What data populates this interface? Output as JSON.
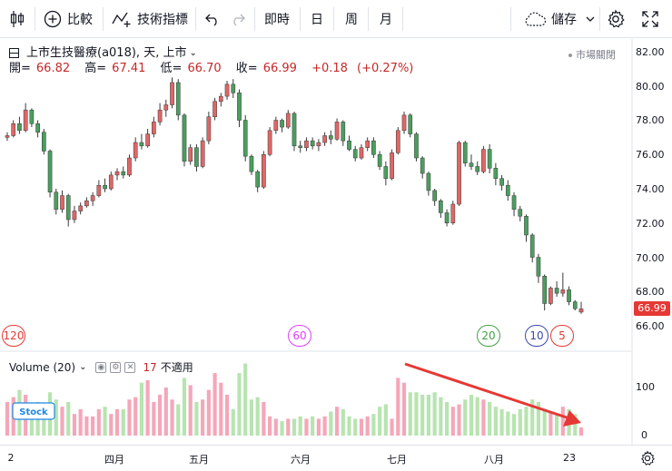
{
  "toolbar": {
    "compare_label": "比較",
    "indicators_label": "技術指標",
    "intervals": [
      "即時",
      "日",
      "周",
      "月"
    ],
    "save_label": "儲存"
  },
  "legend": {
    "title": "上市生技醫療(a018), 天, 上市",
    "open_label": "開=",
    "open": "66.82",
    "high_label": "高=",
    "high": "67.41",
    "low_label": "低=",
    "low": "66.70",
    "close_label": "收=",
    "close": "66.99",
    "change": "+0.18",
    "change_pct": "(+0.27%)",
    "market_status": "市場關閉"
  },
  "price_axis": {
    "ticks": [
      "82.00",
      "80.00",
      "78.00",
      "76.00",
      "74.00",
      "72.00",
      "70.00",
      "68.00",
      "66.00"
    ],
    "last_price": "66.99"
  },
  "ma_markers": [
    {
      "label": "120",
      "color": "#e53935"
    },
    {
      "label": "60",
      "color": "#e040fb"
    },
    {
      "label": "20",
      "color": "#43a047"
    },
    {
      "label": "10",
      "color": "#3949ab"
    },
    {
      "label": "5",
      "color": "#e53935"
    }
  ],
  "volume": {
    "label": "Volume (20)",
    "value": "17",
    "value_text": "不適用",
    "ticks": [
      "100",
      "0"
    ]
  },
  "time_axis": {
    "labels": [
      "2",
      "四月",
      "五月",
      "六月",
      "七月",
      "八月",
      "23"
    ]
  },
  "colors": {
    "up": "#e06666",
    "down": "#4b9e5f",
    "vol_up": "#f4a7b9",
    "vol_down": "#b7e4b0",
    "annotation": "#e53935"
  },
  "watermark": "Stock",
  "chart_data": {
    "type": "candlestick",
    "ylim": [
      65.5,
      82.5
    ],
    "candles": [
      [
        77.0,
        77.3,
        76.8,
        77.1
      ],
      [
        77.1,
        78.0,
        77.0,
        77.8
      ],
      [
        77.8,
        78.2,
        77.2,
        77.4
      ],
      [
        77.4,
        79.0,
        77.3,
        78.6
      ],
      [
        78.6,
        78.7,
        77.6,
        77.8
      ],
      [
        77.8,
        78.0,
        77.0,
        77.3
      ],
      [
        77.3,
        77.5,
        76.0,
        76.2
      ],
      [
        76.2,
        76.3,
        73.5,
        73.8
      ],
      [
        73.8,
        74.0,
        72.5,
        72.8
      ],
      [
        72.8,
        73.9,
        72.6,
        73.6
      ],
      [
        73.6,
        73.7,
        71.8,
        72.2
      ],
      [
        72.2,
        73.0,
        72.0,
        72.7
      ],
      [
        72.7,
        73.2,
        72.5,
        73.0
      ],
      [
        73.0,
        73.5,
        72.9,
        73.3
      ],
      [
        73.3,
        73.8,
        73.0,
        73.6
      ],
      [
        73.6,
        74.5,
        73.5,
        74.2
      ],
      [
        74.2,
        74.6,
        73.8,
        74.0
      ],
      [
        74.0,
        75.0,
        73.9,
        74.8
      ],
      [
        74.8,
        75.2,
        74.5,
        75.0
      ],
      [
        75.0,
        75.3,
        74.6,
        74.8
      ],
      [
        74.8,
        76.0,
        74.7,
        75.8
      ],
      [
        75.8,
        77.0,
        75.6,
        76.7
      ],
      [
        76.7,
        77.2,
        76.3,
        76.5
      ],
      [
        76.5,
        77.5,
        76.4,
        77.2
      ],
      [
        77.2,
        78.2,
        77.0,
        77.9
      ],
      [
        77.9,
        79.0,
        77.7,
        78.6
      ],
      [
        78.6,
        79.2,
        78.2,
        78.9
      ],
      [
        78.9,
        80.5,
        78.7,
        80.2
      ],
      [
        80.2,
        80.4,
        78.0,
        78.3
      ],
      [
        78.3,
        78.4,
        75.3,
        75.6
      ],
      [
        75.6,
        76.6,
        75.4,
        76.4
      ],
      [
        76.4,
        76.6,
        75.0,
        75.3
      ],
      [
        75.3,
        77.0,
        75.2,
        76.8
      ],
      [
        76.8,
        78.5,
        76.6,
        78.2
      ],
      [
        78.2,
        79.3,
        78.0,
        79.1
      ],
      [
        79.1,
        79.6,
        78.8,
        79.4
      ],
      [
        79.4,
        80.3,
        79.2,
        80.1
      ],
      [
        80.1,
        80.4,
        79.3,
        79.6
      ],
      [
        79.6,
        79.8,
        77.6,
        78.0
      ],
      [
        78.0,
        78.3,
        75.6,
        75.9
      ],
      [
        75.9,
        76.0,
        74.8,
        75.0
      ],
      [
        75.0,
        75.1,
        73.8,
        74.1
      ],
      [
        74.1,
        76.2,
        74.0,
        76.0
      ],
      [
        76.0,
        77.6,
        75.9,
        77.4
      ],
      [
        77.4,
        78.2,
        77.2,
        78.0
      ],
      [
        78.0,
        78.1,
        77.3,
        77.6
      ],
      [
        77.6,
        78.6,
        77.5,
        78.4
      ],
      [
        78.4,
        78.5,
        76.2,
        76.5
      ],
      [
        76.5,
        76.8,
        76.1,
        76.4
      ],
      [
        76.4,
        77.0,
        76.2,
        76.8
      ],
      [
        76.8,
        77.0,
        76.3,
        76.5
      ],
      [
        76.5,
        76.9,
        76.2,
        76.7
      ],
      [
        76.7,
        77.3,
        76.5,
        77.1
      ],
      [
        77.1,
        77.4,
        76.6,
        76.9
      ],
      [
        76.9,
        78.1,
        76.8,
        77.9
      ],
      [
        77.9,
        78.0,
        76.5,
        76.8
      ],
      [
        76.8,
        77.1,
        76.2,
        76.3
      ],
      [
        76.3,
        76.5,
        75.6,
        75.8
      ],
      [
        75.8,
        76.6,
        75.7,
        76.4
      ],
      [
        76.4,
        77.0,
        76.2,
        76.8
      ],
      [
        76.8,
        77.0,
        75.8,
        76.0
      ],
      [
        76.0,
        76.2,
        75.1,
        75.3
      ],
      [
        75.3,
        75.6,
        74.2,
        74.6
      ],
      [
        74.6,
        76.3,
        74.5,
        76.1
      ],
      [
        76.1,
        77.6,
        76.0,
        77.4
      ],
      [
        77.4,
        78.5,
        77.2,
        78.3
      ],
      [
        78.3,
        78.4,
        77.0,
        77.2
      ],
      [
        77.2,
        77.3,
        75.6,
        75.8
      ],
      [
        75.8,
        75.9,
        74.6,
        74.9
      ],
      [
        74.9,
        75.0,
        73.6,
        73.9
      ],
      [
        73.9,
        74.0,
        73.0,
        73.3
      ],
      [
        73.3,
        73.4,
        72.3,
        72.6
      ],
      [
        72.6,
        72.8,
        71.8,
        72.0
      ],
      [
        72.0,
        73.3,
        71.9,
        73.1
      ],
      [
        73.1,
        76.8,
        73.0,
        76.7
      ],
      [
        76.7,
        76.8,
        75.3,
        75.5
      ],
      [
        75.5,
        76.0,
        75.1,
        75.3
      ],
      [
        75.3,
        75.6,
        74.8,
        75.0
      ],
      [
        75.0,
        76.5,
        74.9,
        76.3
      ],
      [
        76.3,
        76.6,
        74.9,
        75.2
      ],
      [
        75.2,
        75.5,
        74.2,
        74.6
      ],
      [
        74.6,
        74.8,
        73.9,
        74.2
      ],
      [
        74.2,
        74.5,
        73.3,
        73.6
      ],
      [
        73.6,
        73.8,
        72.4,
        72.8
      ],
      [
        72.8,
        73.0,
        72.1,
        72.4
      ],
      [
        72.4,
        72.5,
        70.9,
        71.3
      ],
      [
        71.3,
        71.4,
        69.7,
        70.0
      ],
      [
        70.0,
        70.2,
        68.5,
        68.9
      ],
      [
        68.9,
        69.0,
        66.9,
        67.3
      ],
      [
        67.3,
        68.3,
        67.2,
        68.2
      ],
      [
        68.2,
        68.6,
        67.7,
        67.9
      ],
      [
        67.9,
        69.1,
        67.7,
        68.1
      ],
      [
        68.1,
        68.3,
        67.2,
        67.4
      ],
      [
        67.4,
        67.5,
        66.9,
        67.0
      ],
      [
        66.8,
        67.4,
        66.7,
        66.99
      ]
    ],
    "volume_ylim": [
      0,
      160
    ],
    "volume": [
      70,
      80,
      95,
      85,
      60,
      70,
      65,
      90,
      75,
      60,
      70,
      45,
      55,
      40,
      40,
      55,
      60,
      45,
      55,
      55,
      75,
      80,
      110,
      115,
      70,
      85,
      100,
      75,
      65,
      120,
      105,
      70,
      75,
      95,
      130,
      110,
      85,
      55,
      130,
      150,
      75,
      80,
      70,
      40,
      35,
      30,
      35,
      35,
      40,
      35,
      40,
      35,
      40,
      50,
      60,
      55,
      40,
      35,
      35,
      40,
      45,
      60,
      65,
      35,
      120,
      110,
      90,
      90,
      85,
      85,
      90,
      80,
      70,
      60,
      65,
      75,
      85,
      80,
      75,
      70,
      60,
      55,
      50,
      45,
      55,
      60,
      75,
      70,
      55,
      50,
      45,
      60,
      55,
      45,
      17
    ]
  }
}
